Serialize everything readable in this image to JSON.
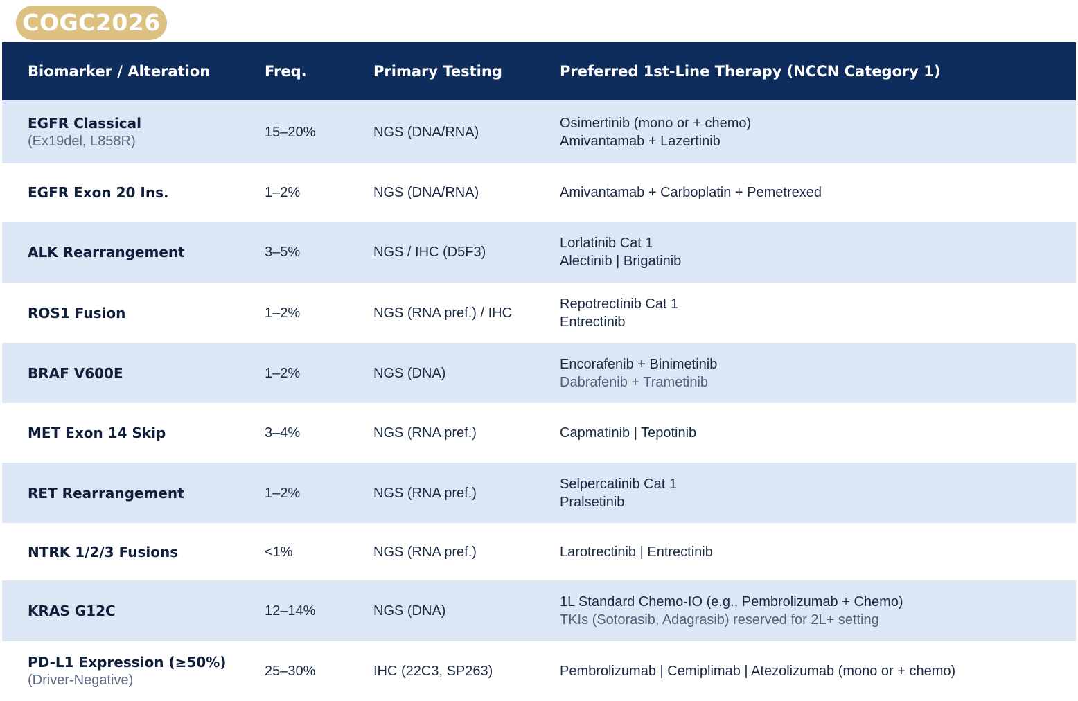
{
  "badge": {
    "label": "COGC2026"
  },
  "table": {
    "headers": {
      "marker": "Biomarker / Alteration",
      "freq": "Freq.",
      "testing": "Primary Testing",
      "therapy": "Preferred 1st-Line Therapy (NCCN Category 1)"
    },
    "rows": [
      {
        "marker": "EGFR Classical",
        "marker_sub": "(Ex19del, L858R)",
        "freq": "15–20%",
        "testing": "NGS (DNA/RNA)",
        "therapy1": "Osimertinib (mono or + chemo)",
        "therapy2": "Amivantamab + Lazertinib"
      },
      {
        "marker": "EGFR Exon 20 Ins.",
        "marker_sub": "",
        "freq": "1–2%",
        "testing": "NGS (DNA/RNA)",
        "therapy1": "Amivantamab + Carboplatin + Pemetrexed",
        "therapy2": ""
      },
      {
        "marker": "ALK Rearrangement",
        "marker_sub": "",
        "freq": "3–5%",
        "testing": "NGS / IHC (D5F3)",
        "therapy1": "Lorlatinib Cat 1",
        "therapy2": "Alectinib | Brigatinib"
      },
      {
        "marker": "ROS1 Fusion",
        "marker_sub": "",
        "freq": "1–2%",
        "testing": "NGS (RNA pref.) / IHC",
        "therapy1": "Repotrectinib Cat 1",
        "therapy2": "Entrectinib"
      },
      {
        "marker": "BRAF V600E",
        "marker_sub": "",
        "freq": "1–2%",
        "testing": "NGS (DNA)",
        "therapy1": "Encorafenib + Binimetinib",
        "therapy2": "Dabrafenib + Trametinib"
      },
      {
        "marker": "MET Exon 14 Skip",
        "marker_sub": "",
        "freq": "3–4%",
        "testing": "NGS (RNA pref.)",
        "therapy1": "Capmatinib | Tepotinib",
        "therapy2": ""
      },
      {
        "marker": "RET Rearrangement",
        "marker_sub": "",
        "freq": "1–2%",
        "testing": "NGS (RNA pref.)",
        "therapy1": "Selpercatinib Cat 1",
        "therapy2": "Pralsetinib"
      },
      {
        "marker": "NTRK 1/2/3 Fusions",
        "marker_sub": "",
        "freq": "<1%",
        "testing": "NGS (RNA pref.)",
        "therapy1": "Larotrectinib | Entrectinib",
        "therapy2": ""
      },
      {
        "marker": "KRAS G12C",
        "marker_sub": "",
        "freq": "12–14%",
        "testing": "NGS (DNA)",
        "therapy1": "1L Standard Chemo-IO (e.g., Pembrolizumab + Chemo)",
        "therapy2": "TKIs (Sotorasib, Adagrasib) reserved for 2L+ setting"
      },
      {
        "marker": "PD-L1 Expression (≥50%)",
        "marker_sub": "(Driver-Negative)",
        "freq": "25–30%",
        "testing": "IHC (22C3, SP263)",
        "therapy1": "Pembrolizumab | Cemiplimab | Atezolizumab (mono or + chemo)",
        "therapy2": ""
      }
    ]
  }
}
